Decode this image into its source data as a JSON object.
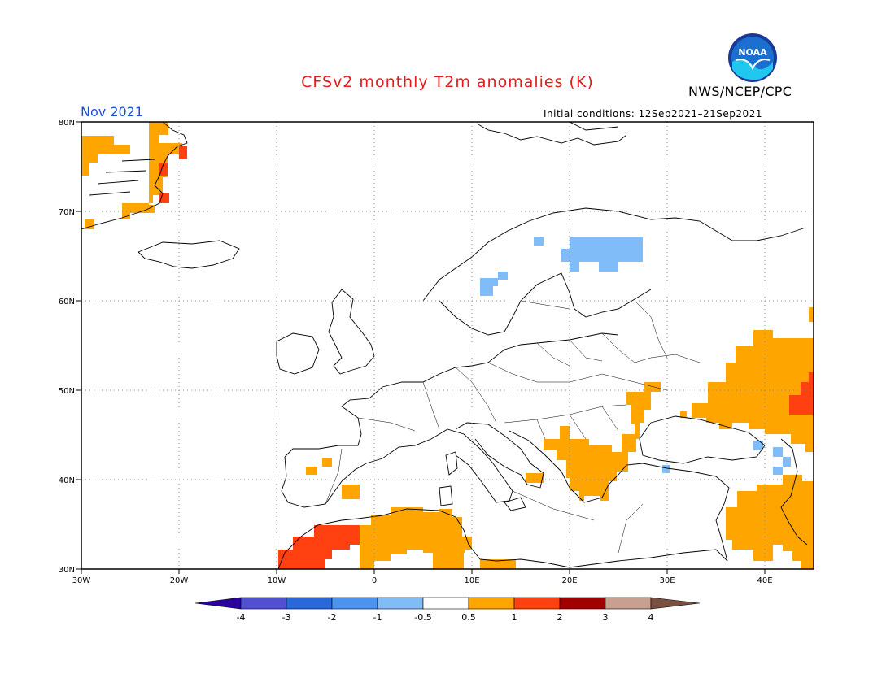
{
  "title": "CFSv2 monthly T2m anomalies (K)",
  "organization": "NWS/NCEP/CPC",
  "logo_text": "NOAA",
  "month": "Nov 2021",
  "initial_conditions": "Initial conditions: 12Sep2021–21Sep2021",
  "axes": {
    "lat_labels": [
      "80N",
      "70N",
      "60N",
      "50N",
      "40N",
      "30N"
    ],
    "lon_labels": [
      "30W",
      "20W",
      "10W",
      "0",
      "10E",
      "20E",
      "30E",
      "40E"
    ],
    "lat_range": [
      30,
      80
    ],
    "lon_range": [
      -30,
      45
    ]
  },
  "colorbar": {
    "tick_labels": [
      "-4",
      "-3",
      "-2",
      "-1",
      "-0.5",
      "0.5",
      "1",
      "2",
      "3",
      "4"
    ],
    "colors": [
      "#2a00a0",
      "#5050d0",
      "#2868d8",
      "#4a94f0",
      "#80bcf8",
      "#ffffff",
      "#ffa500",
      "#ff4010",
      "#a00000",
      "#c8a090",
      "#7a5040"
    ]
  },
  "anomaly_regions": [
    {
      "area": "East Greenland",
      "class": "0.5 to 1",
      "color": "#ffa500"
    },
    {
      "area": "East Greenland coast",
      "class": "1 to 2",
      "color": "#ff4010"
    },
    {
      "area": "Northern Sweden / Finland",
      "class": "-1 to -0.5",
      "color": "#80bcf8"
    },
    {
      "area": "Southern Norway",
      "class": "-1 to -0.5",
      "color": "#80bcf8"
    },
    {
      "area": "Balkans and Greece",
      "class": "0.5 to 1",
      "color": "#ffa500"
    },
    {
      "area": "Romania / Moldova",
      "class": "0.5 to 1",
      "color": "#ffa500"
    },
    {
      "area": "Southern Russia",
      "class": "0.5 to 1",
      "color": "#ffa500"
    },
    {
      "area": "Southern Russia (east edge)",
      "class": "1 to 2",
      "color": "#ff4010"
    },
    {
      "area": "Algeria / Tunisia",
      "class": "0.5 to 1",
      "color": "#ffa500"
    },
    {
      "area": "Morocco",
      "class": "1 to 2",
      "color": "#ff4010"
    },
    {
      "area": "Middle East",
      "class": "0.5 to 1",
      "color": "#ffa500"
    },
    {
      "area": "Spain",
      "class": "0.5 to 1",
      "color": "#ffa500"
    },
    {
      "area": "Caucasus",
      "class": "-1 to -0.5",
      "color": "#80bcf8"
    }
  ]
}
